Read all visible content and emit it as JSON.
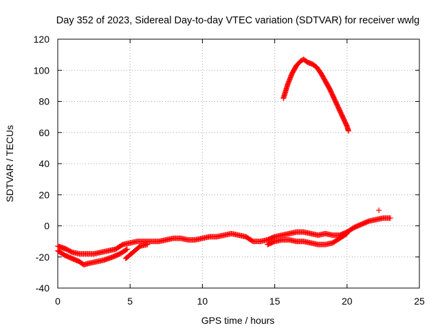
{
  "chart_data": {
    "type": "scatter",
    "title": "Day 352 of 2023, Sidereal Day-to-day VTEC variation (SDTVAR) for receiver wwlg",
    "xlabel": "GPS time / hours",
    "ylabel": "SDTVAR / TECUs",
    "xlim": [
      0,
      25
    ],
    "ylim": [
      -40,
      120
    ],
    "xticks": [
      0,
      5,
      10,
      15,
      20,
      25
    ],
    "yticks": [
      -40,
      -20,
      0,
      20,
      40,
      60,
      80,
      100,
      120
    ],
    "grid": true,
    "marker": "+",
    "color": "#ff0000",
    "series": [
      {
        "name": "main-track",
        "x": [
          0.0,
          0.3,
          0.6,
          1.0,
          1.5,
          2.0,
          2.5,
          3.0,
          3.5,
          4.0,
          4.5,
          5.0,
          5.5,
          6.0,
          6.5,
          7.0,
          7.5,
          8.0,
          8.5,
          9.0,
          9.5,
          10.0,
          10.5,
          11.0,
          11.5,
          12.0,
          12.5,
          13.0,
          13.5,
          14.0,
          14.5,
          15.0,
          15.5,
          16.0,
          16.5,
          17.0,
          17.5,
          18.0,
          18.5,
          19.0,
          19.5,
          20.0,
          20.5,
          21.0,
          21.5,
          22.0,
          22.5,
          23.0
        ],
        "y": [
          -13,
          -14,
          -15,
          -17,
          -18,
          -18,
          -18,
          -17,
          -16,
          -15,
          -12,
          -11,
          -10,
          -10,
          -10,
          -10,
          -9,
          -8,
          -8,
          -9,
          -9,
          -8,
          -7,
          -7,
          -6,
          -5,
          -6,
          -7,
          -10,
          -10,
          -9,
          -7,
          -6,
          -5,
          -4,
          -4,
          -5,
          -6,
          -5,
          -6,
          -6,
          -4,
          -1,
          1,
          3,
          4,
          5,
          5
        ]
      },
      {
        "name": "lower-track",
        "x": [
          0.0,
          0.5,
          1.0,
          1.5,
          1.8,
          2.2,
          2.7,
          3.2,
          3.8,
          4.3,
          4.8
        ],
        "y": [
          -16,
          -19,
          -21,
          -23,
          -25,
          -24,
          -23,
          -22,
          -20,
          -18,
          -15
        ]
      },
      {
        "name": "dip-track",
        "x": [
          4.7,
          5.2,
          5.7,
          6.2
        ],
        "y": [
          -21,
          -17,
          -13,
          -12
        ]
      },
      {
        "name": "evening-spread",
        "x": [
          14.5,
          15.0,
          15.5,
          16.0,
          16.5,
          17.0,
          17.5,
          18.0,
          18.5,
          19.0,
          19.5,
          20.0
        ],
        "y": [
          -12,
          -10,
          -9,
          -9,
          -10,
          -10,
          -11,
          -12,
          -12,
          -11,
          -8,
          -5
        ]
      },
      {
        "name": "high-arc",
        "x": [
          15.6,
          15.9,
          16.2,
          16.5,
          16.8,
          17.0,
          17.3,
          17.6,
          17.9,
          18.2,
          18.5,
          18.8,
          19.1,
          19.4,
          19.7,
          20.0,
          20.1
        ],
        "y": [
          82,
          91,
          98,
          103,
          106,
          107,
          105,
          104,
          102,
          98,
          93,
          88,
          82,
          76,
          70,
          64,
          61
        ]
      },
      {
        "name": "outlier",
        "x": [
          22.2
        ],
        "y": [
          10
        ]
      }
    ]
  }
}
